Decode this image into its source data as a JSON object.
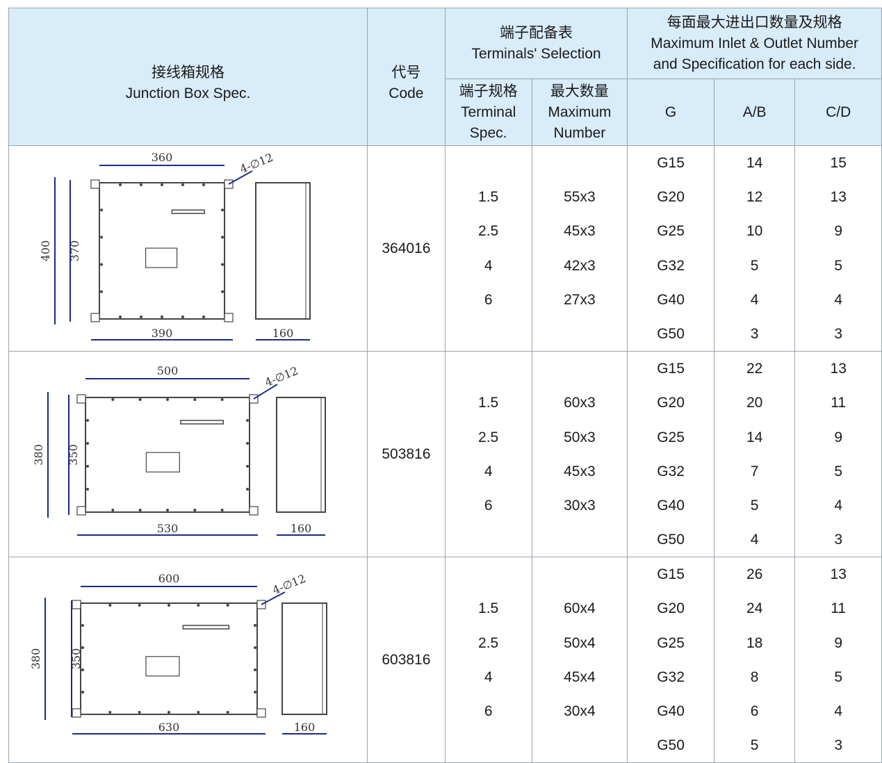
{
  "header": {
    "spec_zh": "接线箱规格",
    "spec_en": "Junction Box Spec.",
    "code_zh": "代号",
    "code_en": "Code",
    "terminals_zh": "端子配备表",
    "terminals_en": "Terminals' Selection",
    "terminal_spec_zh": "端子规格",
    "terminal_spec_en1": "Terminal",
    "terminal_spec_en2": "Spec.",
    "max_number_zh": "最大数量",
    "max_number_en1": "Maximum",
    "max_number_en2": "Number",
    "inlet_zh": "每面最大进出口数量及规格",
    "inlet_en1": "Maximum Inlet & Outlet Number",
    "inlet_en2": "and Specification for each side.",
    "g": "G",
    "ab": "A/B",
    "cd": "C/D"
  },
  "rows": [
    {
      "code": "364016",
      "drawing": {
        "width_top": "360",
        "width_bottom": "390",
        "height_outer": "400",
        "height_inner": "370",
        "depth": "160",
        "holes": "4-∅12"
      },
      "terminal_spec": [
        "1.5",
        "2.5",
        "4",
        "6"
      ],
      "max_number": [
        "55x3",
        "45x3",
        "42x3",
        "27x3"
      ],
      "g": [
        "G15",
        "G20",
        "G25",
        "G32",
        "G40",
        "G50"
      ],
      "ab": [
        "14",
        "12",
        "10",
        "5",
        "4",
        "3"
      ],
      "cd": [
        "15",
        "13",
        "9",
        "5",
        "4",
        "3"
      ]
    },
    {
      "code": "503816",
      "drawing": {
        "width_top": "500",
        "width_bottom": "530",
        "height_outer": "380",
        "height_inner": "350",
        "depth": "160",
        "holes": "4-∅12"
      },
      "terminal_spec": [
        "1.5",
        "2.5",
        "4",
        "6"
      ],
      "max_number": [
        "60x3",
        "50x3",
        "45x3",
        "30x3"
      ],
      "g": [
        "G15",
        "G20",
        "G25",
        "G32",
        "G40",
        "G50"
      ],
      "ab": [
        "22",
        "20",
        "14",
        "7",
        "5",
        "4"
      ],
      "cd": [
        "13",
        "11",
        "9",
        "5",
        "4",
        "3"
      ]
    },
    {
      "code": "603816",
      "drawing": {
        "width_top": "600",
        "width_bottom": "630",
        "height_outer": "380",
        "height_inner": "350",
        "depth": "160",
        "holes": "4-∅12"
      },
      "terminal_spec": [
        "1.5",
        "2.5",
        "4",
        "6"
      ],
      "max_number": [
        "60x4",
        "50x4",
        "45x4",
        "30x4"
      ],
      "g": [
        "G15",
        "G20",
        "G25",
        "G32",
        "G40",
        "G50"
      ],
      "ab": [
        "26",
        "24",
        "18",
        "8",
        "6",
        "5"
      ],
      "cd": [
        "13",
        "11",
        "9",
        "5",
        "4",
        "3"
      ]
    }
  ]
}
